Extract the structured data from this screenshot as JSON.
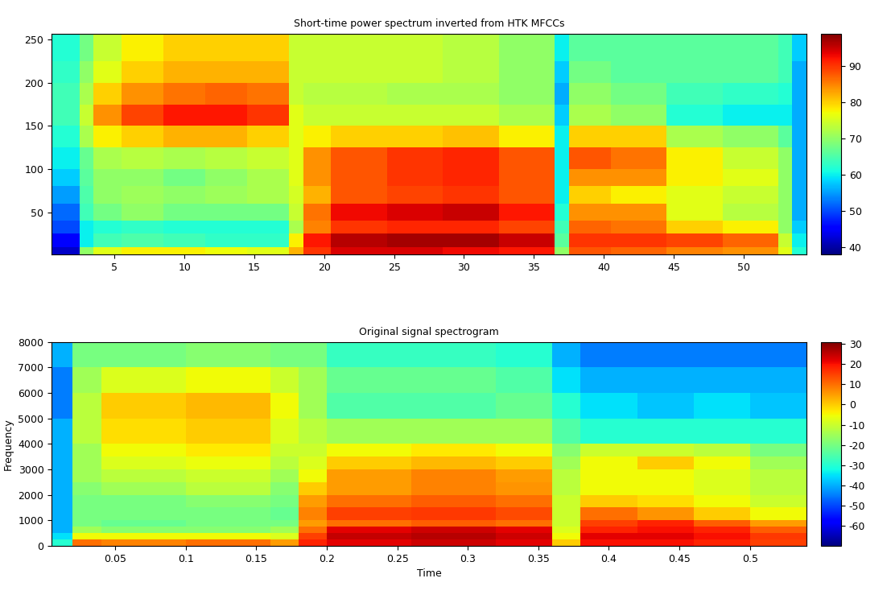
{
  "chart_data": [
    {
      "type": "heatmap",
      "title": "Short-time power spectrum inverted from HTK MFCCs",
      "color": "jet",
      "x_edges": [
        0.5,
        2.5,
        3.5,
        5.5,
        8.5,
        11.5,
        14.5,
        17.5,
        18.5,
        20.5,
        24.5,
        28.5,
        32.5,
        36.5,
        37.5,
        40.5,
        44.5,
        48.5,
        52.5,
        53.5,
        54.5
      ],
      "y_edges": [
        1,
        10,
        25,
        40,
        60,
        80,
        100,
        125,
        150,
        175,
        200,
        225,
        257
      ],
      "cells": [
        [
          42,
          70,
          76,
          78,
          78,
          77,
          76,
          82,
          90,
          94,
          94,
          93,
          92,
          70,
          88,
          87,
          85,
          84,
          76,
          62
        ],
        [
          45,
          60,
          64,
          65,
          64,
          63,
          63,
          78,
          92,
          96,
          97,
          97,
          95,
          66,
          90,
          90,
          89,
          87,
          74,
          60
        ],
        [
          50,
          60,
          62,
          63,
          62,
          62,
          62,
          72,
          85,
          90,
          91,
          91,
          89,
          64,
          87,
          86,
          80,
          78,
          70,
          58
        ],
        [
          52,
          64,
          68,
          70,
          68,
          68,
          68,
          74,
          86,
          93,
          94,
          95,
          92,
          62,
          84,
          84,
          76,
          73,
          70,
          56
        ],
        [
          55,
          65,
          70,
          71,
          70,
          71,
          72,
          75,
          82,
          88,
          89,
          90,
          88,
          60,
          80,
          78,
          76,
          74,
          70,
          56
        ],
        [
          58,
          66,
          70,
          70,
          68,
          70,
          72,
          76,
          84,
          88,
          90,
          91,
          88,
          60,
          84,
          84,
          78,
          76,
          70,
          56
        ],
        [
          60,
          67,
          72,
          73,
          72,
          73,
          74,
          76,
          84,
          88,
          90,
          91,
          88,
          60,
          88,
          86,
          78,
          74,
          70,
          56
        ],
        [
          62,
          72,
          78,
          80,
          82,
          82,
          80,
          76,
          78,
          80,
          80,
          81,
          78,
          60,
          80,
          80,
          72,
          70,
          66,
          56
        ],
        [
          64,
          74,
          84,
          89,
          92,
          92,
          90,
          76,
          74,
          74,
          74,
          74,
          72,
          58,
          72,
          70,
          62,
          60,
          60,
          56
        ],
        [
          64,
          72,
          80,
          84,
          86,
          87,
          86,
          74,
          73,
          73,
          72,
          72,
          70,
          56,
          70,
          68,
          64,
          63,
          62,
          56
        ],
        [
          63,
          70,
          76,
          80,
          82,
          82,
          82,
          74,
          74,
          74,
          74,
          73,
          70,
          58,
          68,
          66,
          66,
          66,
          64,
          56
        ],
        [
          62,
          68,
          74,
          78,
          80,
          80,
          80,
          74,
          74,
          74,
          74,
          73,
          70,
          60,
          66,
          66,
          66,
          66,
          64,
          58
        ]
      ],
      "xlim": [
        0.5,
        54.5
      ],
      "ylim": [
        1,
        257
      ],
      "xticks": [
        5,
        10,
        15,
        20,
        25,
        30,
        35,
        40,
        45,
        50
      ],
      "yticks": [
        50,
        100,
        150,
        200,
        250
      ],
      "colorbar_range": [
        38,
        99
      ],
      "colorbar_ticks": [
        40,
        50,
        60,
        70,
        80,
        90
      ]
    },
    {
      "type": "heatmap",
      "title": "Original signal spectrogram",
      "x_label": "Time",
      "y_label": "Frequency",
      "color": "jet",
      "x_edges": [
        0.005,
        0.02,
        0.04,
        0.1,
        0.16,
        0.18,
        0.2,
        0.26,
        0.32,
        0.36,
        0.38,
        0.42,
        0.46,
        0.5,
        0.54
      ],
      "y_edges": [
        0,
        250,
        500,
        750,
        1000,
        1500,
        2000,
        2500,
        3000,
        3500,
        4000,
        5000,
        6000,
        7000,
        8000
      ],
      "cells": [
        [
          -30,
          10,
          8,
          10,
          5,
          18,
          22,
          24,
          22,
          0,
          20,
          20,
          18,
          15
        ],
        [
          -35,
          -5,
          -5,
          -5,
          -8,
          15,
          25,
          26,
          24,
          -5,
          22,
          22,
          20,
          16
        ],
        [
          -40,
          -15,
          -18,
          -18,
          -15,
          10,
          22,
          24,
          22,
          -8,
          18,
          20,
          18,
          12
        ],
        [
          -40,
          -20,
          -22,
          -20,
          -20,
          5,
          10,
          12,
          10,
          -10,
          15,
          18,
          12,
          5
        ],
        [
          -40,
          -20,
          -20,
          -20,
          -22,
          8,
          15,
          16,
          14,
          -10,
          10,
          6,
          0,
          -5
        ],
        [
          -40,
          -20,
          -20,
          -18,
          -20,
          5,
          10,
          12,
          10,
          -10,
          0,
          -2,
          -5,
          -10
        ],
        [
          -40,
          -18,
          -15,
          -12,
          -18,
          0,
          5,
          8,
          6,
          -12,
          -5,
          -5,
          -8,
          -12
        ],
        [
          -40,
          -15,
          -12,
          -10,
          -15,
          -5,
          5,
          8,
          5,
          -12,
          -5,
          -5,
          -8,
          -12
        ],
        [
          -40,
          -15,
          -8,
          -6,
          -12,
          -8,
          0,
          2,
          0,
          -15,
          -5,
          0,
          -5,
          -15
        ],
        [
          -40,
          -15,
          -5,
          -3,
          -10,
          -10,
          -5,
          -3,
          -5,
          -18,
          -10,
          -10,
          -12,
          -20
        ],
        [
          -40,
          -12,
          -2,
          0,
          -8,
          -12,
          -15,
          -15,
          -15,
          -25,
          -30,
          -30,
          -30,
          -30
        ],
        [
          -45,
          -12,
          0,
          2,
          -5,
          -15,
          -25,
          -25,
          -22,
          -30,
          -35,
          -38,
          -35,
          -38
        ],
        [
          -45,
          -15,
          -8,
          -5,
          -10,
          -15,
          -22,
          -22,
          -25,
          -35,
          -40,
          -40,
          -40,
          -40
        ],
        [
          -40,
          -20,
          -20,
          -18,
          -20,
          -20,
          -28,
          -28,
          -30,
          -40,
          -45,
          -45,
          -45,
          -45
        ]
      ],
      "xlim": [
        0.005,
        0.54
      ],
      "ylim": [
        0,
        8000
      ],
      "xticks": [
        0.05,
        0.1,
        0.15,
        0.2,
        0.25,
        0.3,
        0.35,
        0.4,
        0.45,
        0.5
      ],
      "yticks": [
        0,
        1000,
        2000,
        3000,
        4000,
        5000,
        6000,
        7000,
        8000
      ],
      "colorbar_range": [
        -70,
        31
      ],
      "colorbar_ticks": [
        -60,
        -50,
        -40,
        -30,
        -20,
        -10,
        0,
        10,
        20,
        30
      ]
    }
  ]
}
